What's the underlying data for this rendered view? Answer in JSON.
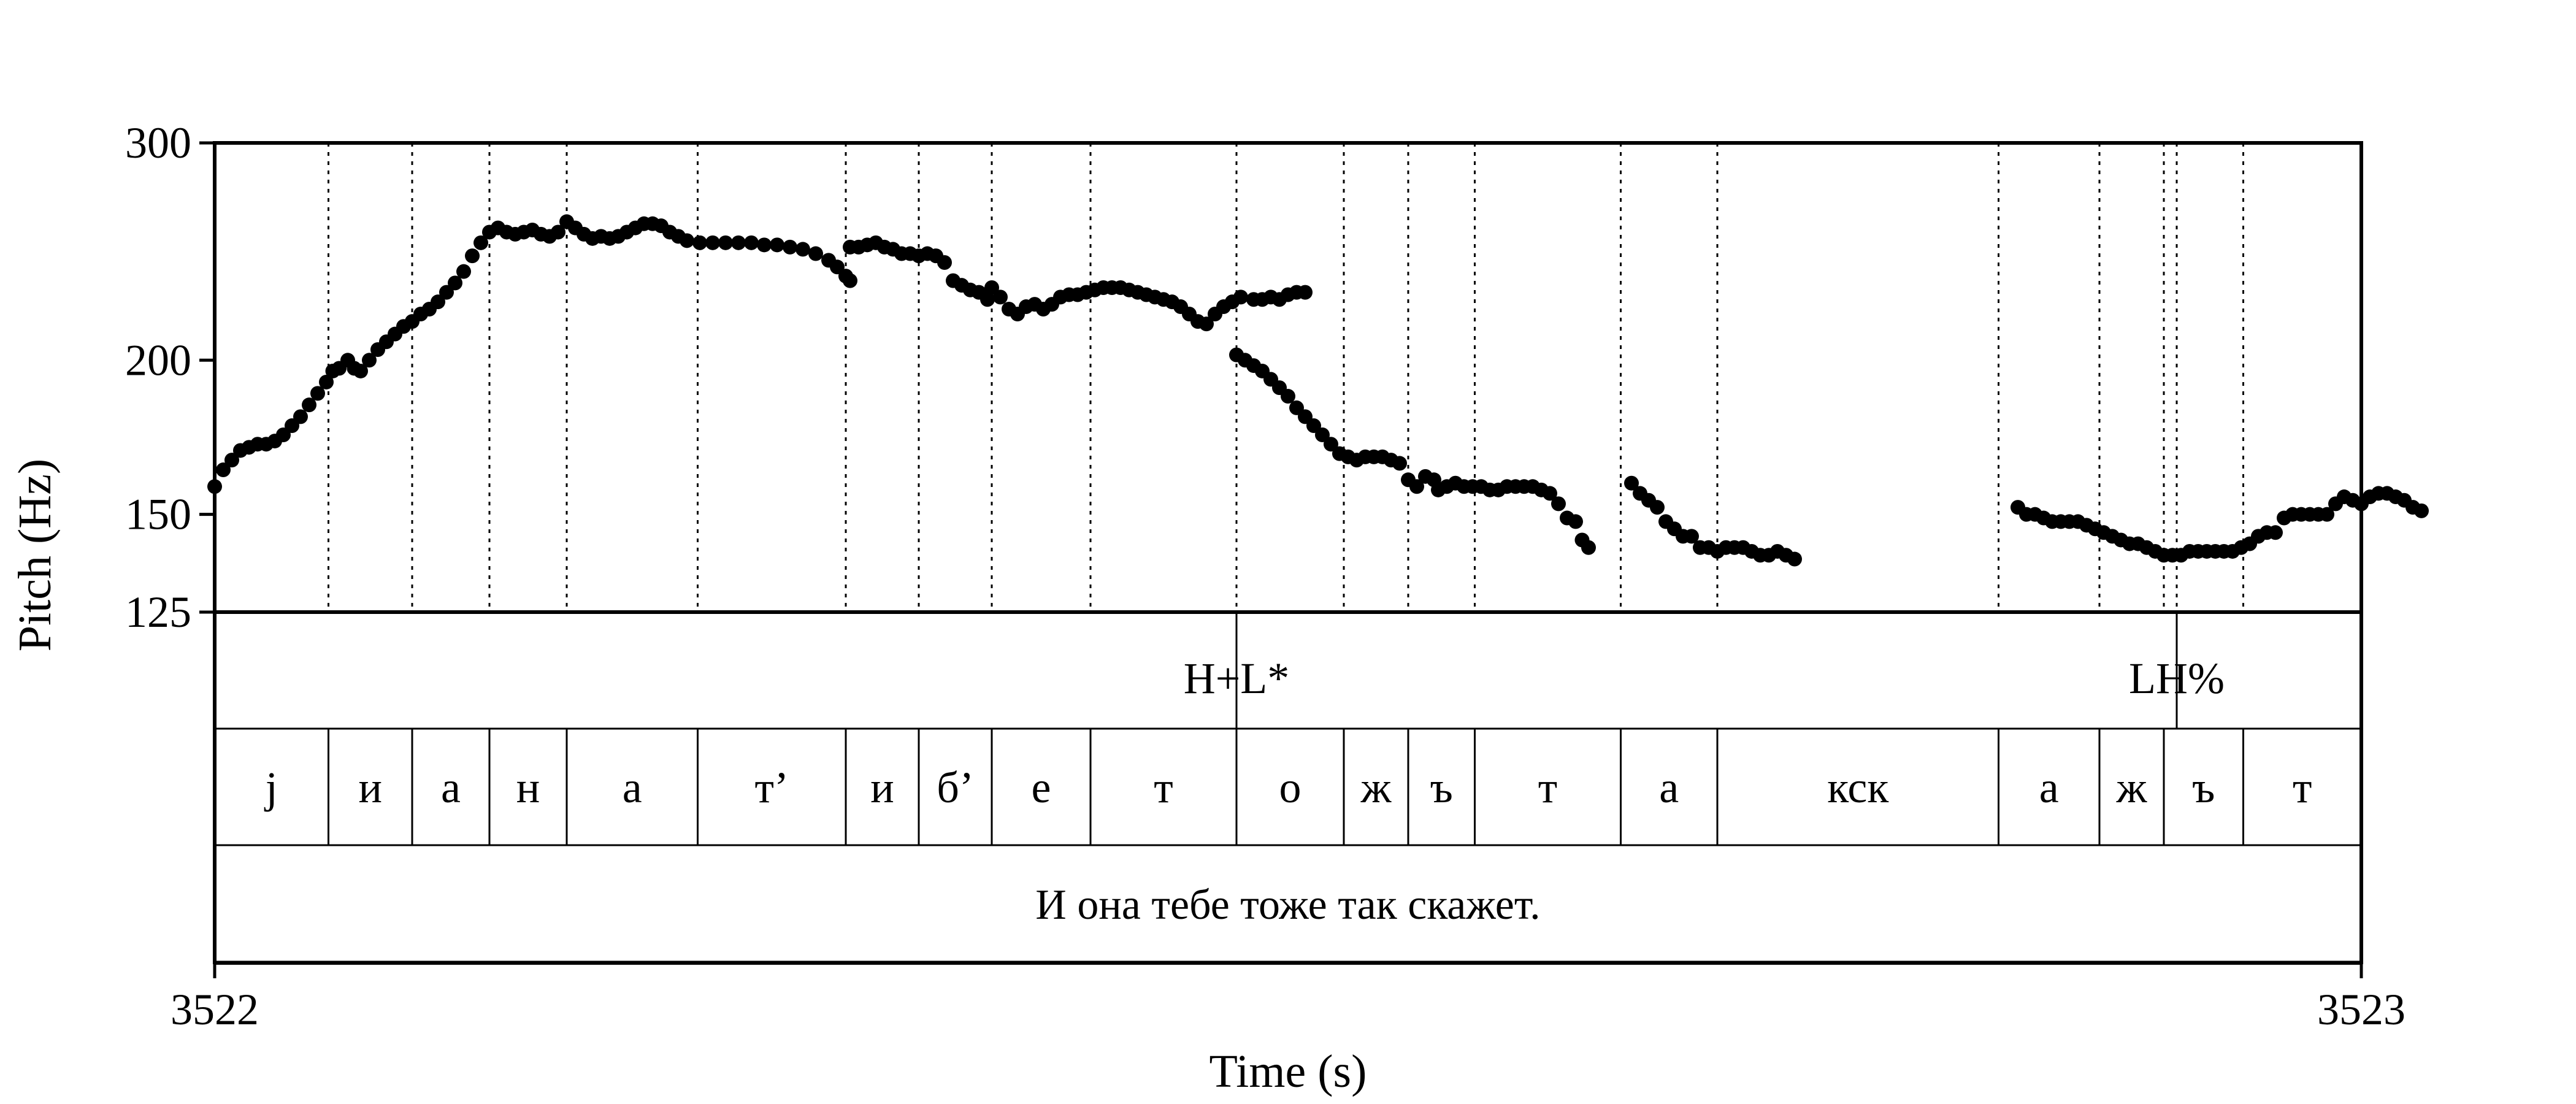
{
  "chart_data": {
    "type": "scatter",
    "title": "",
    "xlabel": "Time (s)",
    "ylabel": "Pitch (Hz)",
    "xlim": [
      3522,
      3523
    ],
    "ylim": [
      125,
      300
    ],
    "y_scale": "log",
    "x_tick_labels": [
      "3522",
      "3523"
    ],
    "y_ticks": [
      125,
      150,
      200,
      300
    ],
    "y_tick_labels": [
      "125",
      "150",
      "200",
      "300"
    ],
    "grid": false,
    "pitch_points": [
      [
        3522.0,
        158
      ],
      [
        3522.004,
        163
      ],
      [
        3522.008,
        166
      ],
      [
        3522.012,
        169
      ],
      [
        3522.016,
        170
      ],
      [
        3522.02,
        171
      ],
      [
        3522.024,
        171
      ],
      [
        3522.028,
        172
      ],
      [
        3522.032,
        174
      ],
      [
        3522.036,
        177
      ],
      [
        3522.04,
        180
      ],
      [
        3522.044,
        184
      ],
      [
        3522.048,
        188
      ],
      [
        3522.052,
        192
      ],
      [
        3522.055,
        196
      ],
      [
        3522.058,
        197
      ],
      [
        3522.062,
        200
      ],
      [
        3522.065,
        197
      ],
      [
        3522.068,
        196
      ],
      [
        3522.072,
        200
      ],
      [
        3522.076,
        204
      ],
      [
        3522.08,
        207
      ],
      [
        3522.084,
        210
      ],
      [
        3522.088,
        213
      ],
      [
        3522.092,
        215
      ],
      [
        3522.096,
        218
      ],
      [
        3522.1,
        220
      ],
      [
        3522.104,
        223
      ],
      [
        3522.108,
        227
      ],
      [
        3522.112,
        231
      ],
      [
        3522.116,
        236
      ],
      [
        3522.12,
        243
      ],
      [
        3522.124,
        249
      ],
      [
        3522.128,
        254
      ],
      [
        3522.132,
        256
      ],
      [
        3522.136,
        254
      ],
      [
        3522.14,
        253
      ],
      [
        3522.144,
        254
      ],
      [
        3522.148,
        255
      ],
      [
        3522.152,
        253
      ],
      [
        3522.156,
        252
      ],
      [
        3522.16,
        254
      ],
      [
        3522.164,
        259
      ],
      [
        3522.168,
        256
      ],
      [
        3522.172,
        253
      ],
      [
        3522.176,
        251
      ],
      [
        3522.18,
        252
      ],
      [
        3522.184,
        251
      ],
      [
        3522.188,
        252
      ],
      [
        3522.192,
        254
      ],
      [
        3522.196,
        256
      ],
      [
        3522.2,
        258
      ],
      [
        3522.204,
        258
      ],
      [
        3522.208,
        257
      ],
      [
        3522.212,
        254
      ],
      [
        3522.216,
        252
      ],
      [
        3522.22,
        250
      ],
      [
        3522.226,
        249
      ],
      [
        3522.232,
        249
      ],
      [
        3522.238,
        249
      ],
      [
        3522.244,
        249
      ],
      [
        3522.25,
        249
      ],
      [
        3522.256,
        248
      ],
      [
        3522.262,
        248
      ],
      [
        3522.268,
        247
      ],
      [
        3522.274,
        246
      ],
      [
        3522.28,
        244
      ],
      [
        3522.286,
        241
      ],
      [
        3522.29,
        238
      ],
      [
        3522.294,
        234
      ],
      [
        3522.296,
        232
      ],
      [
        3522.296,
        247
      ],
      [
        3522.3,
        247
      ],
      [
        3522.304,
        248
      ],
      [
        3522.308,
        249
      ],
      [
        3522.312,
        247
      ],
      [
        3522.316,
        246
      ],
      [
        3522.32,
        244
      ],
      [
        3522.324,
        244
      ],
      [
        3522.328,
        243
      ],
      [
        3522.332,
        244
      ],
      [
        3522.336,
        243
      ],
      [
        3522.34,
        240
      ],
      [
        3522.344,
        232
      ],
      [
        3522.348,
        230
      ],
      [
        3522.352,
        228
      ],
      [
        3522.356,
        227
      ],
      [
        3522.36,
        224
      ],
      [
        3522.362,
        229
      ],
      [
        3522.366,
        225
      ],
      [
        3522.37,
        220
      ],
      [
        3522.374,
        218
      ],
      [
        3522.378,
        221
      ],
      [
        3522.382,
        222
      ],
      [
        3522.386,
        220
      ],
      [
        3522.39,
        222
      ],
      [
        3522.394,
        225
      ],
      [
        3522.398,
        226
      ],
      [
        3522.402,
        226
      ],
      [
        3522.406,
        227
      ],
      [
        3522.41,
        228
      ],
      [
        3522.414,
        229
      ],
      [
        3522.418,
        229
      ],
      [
        3522.422,
        229
      ],
      [
        3522.426,
        228
      ],
      [
        3522.43,
        227
      ],
      [
        3522.434,
        226
      ],
      [
        3522.438,
        225
      ],
      [
        3522.442,
        224
      ],
      [
        3522.446,
        223
      ],
      [
        3522.45,
        221
      ],
      [
        3522.454,
        218
      ],
      [
        3522.458,
        215
      ],
      [
        3522.462,
        214
      ],
      [
        3522.466,
        218
      ],
      [
        3522.47,
        221
      ],
      [
        3522.474,
        223
      ],
      [
        3522.478,
        225
      ],
      [
        3522.484,
        224
      ],
      [
        3522.488,
        224
      ],
      [
        3522.492,
        225
      ],
      [
        3522.496,
        224
      ],
      [
        3522.5,
        226
      ],
      [
        3522.504,
        227
      ],
      [
        3522.508,
        227
      ],
      [
        3522.476,
        202
      ],
      [
        3522.48,
        200
      ],
      [
        3522.484,
        198
      ],
      [
        3522.488,
        196
      ],
      [
        3522.492,
        193
      ],
      [
        3522.496,
        190
      ],
      [
        3522.5,
        187
      ],
      [
        3522.504,
        183
      ],
      [
        3522.508,
        180
      ],
      [
        3522.512,
        177
      ],
      [
        3522.516,
        174
      ],
      [
        3522.52,
        171
      ],
      [
        3522.524,
        168
      ],
      [
        3522.528,
        167
      ],
      [
        3522.532,
        166
      ],
      [
        3522.536,
        167
      ],
      [
        3522.54,
        167
      ],
      [
        3522.544,
        167
      ],
      [
        3522.548,
        166
      ],
      [
        3522.552,
        165
      ],
      [
        3522.556,
        160
      ],
      [
        3522.56,
        158
      ],
      [
        3522.564,
        161
      ],
      [
        3522.568,
        160
      ],
      [
        3522.57,
        157
      ],
      [
        3522.574,
        158
      ],
      [
        3522.578,
        159
      ],
      [
        3522.582,
        158
      ],
      [
        3522.586,
        158
      ],
      [
        3522.59,
        158
      ],
      [
        3522.594,
        157
      ],
      [
        3522.598,
        157
      ],
      [
        3522.602,
        158
      ],
      [
        3522.606,
        158
      ],
      [
        3522.61,
        158
      ],
      [
        3522.614,
        158
      ],
      [
        3522.618,
        157
      ],
      [
        3522.622,
        156
      ],
      [
        3522.626,
        153
      ],
      [
        3522.63,
        149
      ],
      [
        3522.634,
        148
      ],
      [
        3522.637,
        143
      ],
      [
        3522.64,
        141
      ],
      [
        3522.66,
        159
      ],
      [
        3522.664,
        156
      ],
      [
        3522.668,
        154
      ],
      [
        3522.672,
        152
      ],
      [
        3522.676,
        148
      ],
      [
        3522.68,
        146
      ],
      [
        3522.684,
        144
      ],
      [
        3522.688,
        144
      ],
      [
        3522.692,
        141
      ],
      [
        3522.696,
        141
      ],
      [
        3522.7,
        140
      ],
      [
        3522.704,
        141
      ],
      [
        3522.708,
        141
      ],
      [
        3522.712,
        141
      ],
      [
        3522.716,
        140
      ],
      [
        3522.72,
        139
      ],
      [
        3522.724,
        139
      ],
      [
        3522.728,
        140
      ],
      [
        3522.732,
        139
      ],
      [
        3522.736,
        138
      ],
      [
        3522.84,
        152
      ],
      [
        3522.844,
        150
      ],
      [
        3522.848,
        150
      ],
      [
        3522.852,
        149
      ],
      [
        3522.856,
        148
      ],
      [
        3522.86,
        148
      ],
      [
        3522.864,
        148
      ],
      [
        3522.868,
        148
      ],
      [
        3522.872,
        147
      ],
      [
        3522.876,
        146
      ],
      [
        3522.88,
        145
      ],
      [
        3522.884,
        144
      ],
      [
        3522.888,
        143
      ],
      [
        3522.892,
        142
      ],
      [
        3522.896,
        142
      ],
      [
        3522.9,
        141
      ],
      [
        3522.904,
        140
      ],
      [
        3522.908,
        139
      ],
      [
        3522.912,
        139
      ],
      [
        3522.916,
        139
      ],
      [
        3522.92,
        140
      ],
      [
        3522.924,
        140
      ],
      [
        3522.928,
        140
      ],
      [
        3522.932,
        140
      ],
      [
        3522.936,
        140
      ],
      [
        3522.94,
        140
      ],
      [
        3522.944,
        141
      ],
      [
        3522.948,
        142
      ],
      [
        3522.952,
        144
      ],
      [
        3522.956,
        145
      ],
      [
        3522.96,
        145
      ],
      [
        3522.964,
        149
      ],
      [
        3522.968,
        150
      ],
      [
        3522.972,
        150
      ],
      [
        3522.976,
        150
      ],
      [
        3522.98,
        150
      ],
      [
        3522.984,
        150
      ],
      [
        3522.988,
        153
      ],
      [
        3522.992,
        155
      ],
      [
        3522.996,
        154
      ],
      [
        3523.0,
        153
      ],
      [
        3523.004,
        155
      ],
      [
        3523.008,
        156
      ],
      [
        3523.012,
        156
      ],
      [
        3523.016,
        155
      ],
      [
        3523.02,
        154
      ],
      [
        3523.024,
        152
      ],
      [
        3523.028,
        151
      ]
    ],
    "tiers": {
      "tones": [
        {
          "label": "H+L*",
          "time": 3522.476
        },
        {
          "label": "LH%",
          "time": 3522.914
        }
      ],
      "segments": [
        {
          "label": "j",
          "start": 3522.0,
          "end": 3522.053
        },
        {
          "label": "и",
          "start": 3522.053,
          "end": 3522.092
        },
        {
          "label": "а",
          "start": 3522.092,
          "end": 3522.128
        },
        {
          "label": "н",
          "start": 3522.128,
          "end": 3522.164
        },
        {
          "label": "а",
          "start": 3522.164,
          "end": 3522.225
        },
        {
          "label": "т’",
          "start": 3522.225,
          "end": 3522.294
        },
        {
          "label": "и",
          "start": 3522.294,
          "end": 3522.328
        },
        {
          "label": "б’",
          "start": 3522.328,
          "end": 3522.362
        },
        {
          "label": "е",
          "start": 3522.362,
          "end": 3522.408
        },
        {
          "label": "т",
          "start": 3522.408,
          "end": 3522.476
        },
        {
          "label": "о",
          "start": 3522.476,
          "end": 3522.526
        },
        {
          "label": "ж",
          "start": 3522.526,
          "end": 3522.556
        },
        {
          "label": "ъ",
          "start": 3522.556,
          "end": 3522.587
        },
        {
          "label": "т",
          "start": 3522.587,
          "end": 3522.655
        },
        {
          "label": "а",
          "start": 3522.655,
          "end": 3522.7
        },
        {
          "label": "кск",
          "start": 3522.7,
          "end": 3522.831
        },
        {
          "label": "а",
          "start": 3522.831,
          "end": 3522.878
        },
        {
          "label": "ж",
          "start": 3522.878,
          "end": 3522.908
        },
        {
          "label": "ъ",
          "start": 3522.908,
          "end": 3522.945
        },
        {
          "label": "т",
          "start": 3522.945,
          "end": 3523.0
        }
      ],
      "sentence": "И она тебе тоже так скажет."
    },
    "colors": {
      "points": "#000000",
      "lines": "#000000",
      "background": "#ffffff"
    }
  }
}
